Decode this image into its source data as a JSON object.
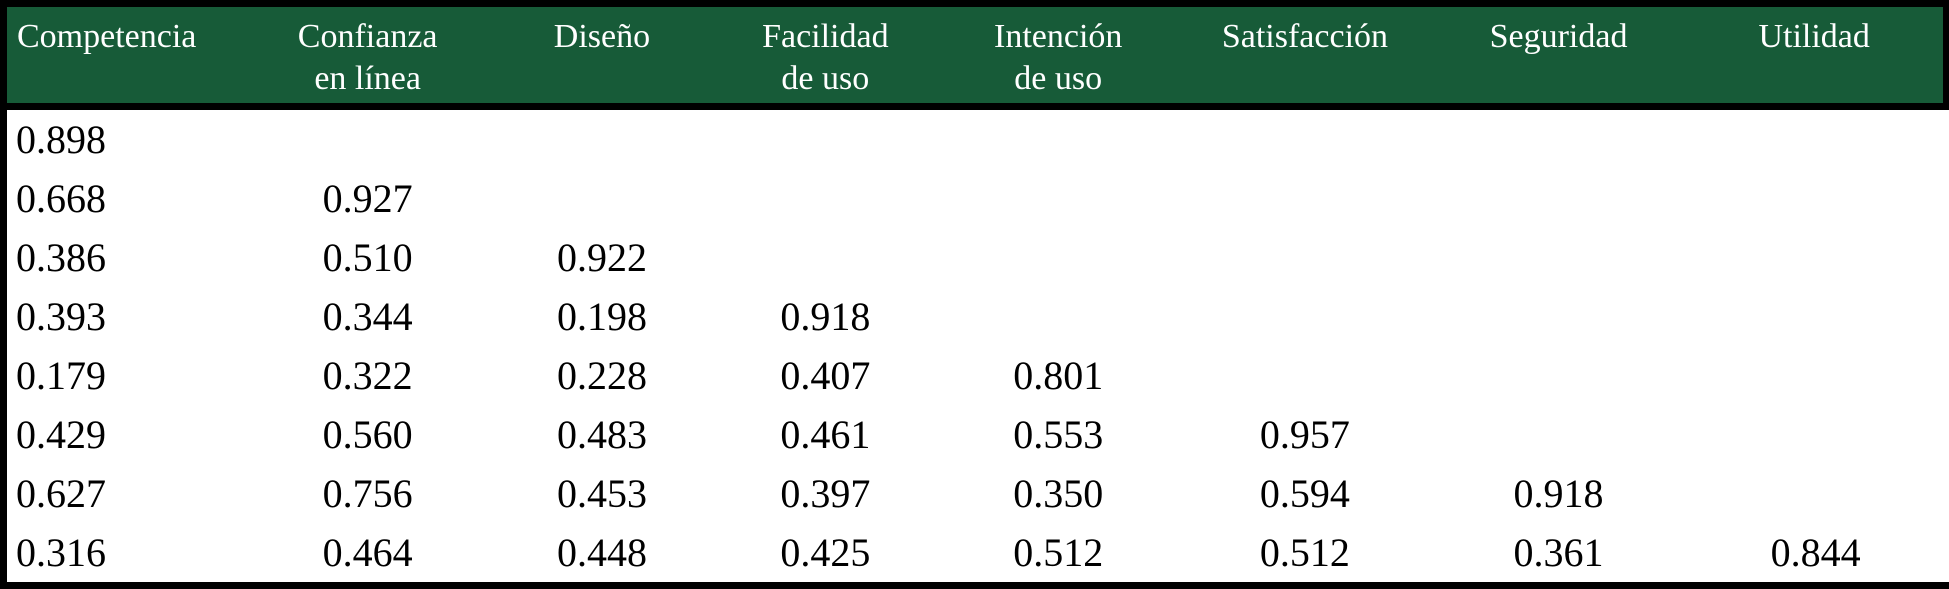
{
  "colors": {
    "header_bg": "#175B38",
    "header_text": "#FFFFFF",
    "border": "#000000",
    "body_bg": "#FFFFFF",
    "body_text": "#000000"
  },
  "table": {
    "columns": [
      "Competencia",
      "Confianza\nen línea",
      "Diseño",
      "Facilidad\nde uso",
      "Intención\nde uso",
      "Satisfacción",
      "Seguridad",
      "Utilidad"
    ],
    "col_widths_pct": [
      12.21,
      12.78,
      11.39,
      11.65,
      12.37,
      13.08,
      13.08,
      13.44
    ],
    "rows": [
      [
        "0.898",
        "",
        "",
        "",
        "",
        "",
        "",
        ""
      ],
      [
        "0.668",
        "0.927",
        "",
        "",
        "",
        "",
        "",
        ""
      ],
      [
        "0.386",
        "0.510",
        "0.922",
        "",
        "",
        "",
        "",
        ""
      ],
      [
        "0.393",
        "0.344",
        "0.198",
        "0.918",
        "",
        "",
        "",
        ""
      ],
      [
        "0.179",
        "0.322",
        "0.228",
        "0.407",
        "0.801",
        "",
        "",
        ""
      ],
      [
        "0.429",
        "0.560",
        "0.483",
        "0.461",
        "0.553",
        "0.957",
        "",
        ""
      ],
      [
        "0.627",
        "0.756",
        "0.453",
        "0.397",
        "0.350",
        "0.594",
        "0.918",
        ""
      ],
      [
        "0.316",
        "0.464",
        "0.448",
        "0.425",
        "0.512",
        "0.512",
        "0.361",
        "0.844"
      ]
    ]
  }
}
